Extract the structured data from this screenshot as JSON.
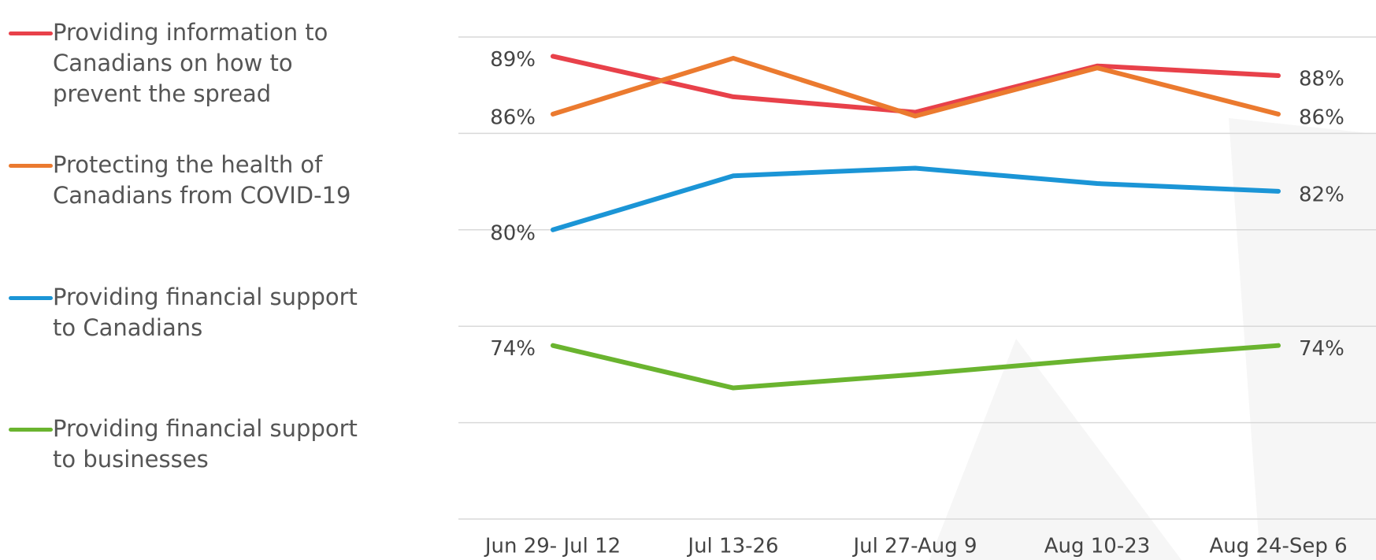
{
  "chart_data": {
    "type": "line",
    "categories": [
      "Jun 29- Jul 12",
      "Jul 13-26",
      "Jul 27-Aug 9",
      "Aug 10-23",
      "Aug 24-Sep 6"
    ],
    "series": [
      {
        "name": "Providing information to Canadians on how to prevent the spread",
        "color": "#e8414a",
        "values": [
          89,
          86.9,
          86.1,
          88.5,
          88
        ],
        "value_labels": [
          "89%",
          null,
          null,
          null,
          "88%"
        ]
      },
      {
        "name": "Protecting the health of Canadians from COVID-19",
        "color": "#eb7a2f",
        "values": [
          86,
          88.9,
          85.9,
          88.4,
          86
        ],
        "value_labels": [
          "86%",
          null,
          null,
          null,
          "86%"
        ]
      },
      {
        "name": "Providing financial support to Canadians",
        "color": "#1b95d6",
        "values": [
          80,
          82.8,
          83.2,
          82.4,
          82
        ],
        "value_labels": [
          "80%",
          null,
          null,
          null,
          "82%"
        ]
      },
      {
        "name": "Providing financial support to businesses",
        "color": "#6ab42f",
        "values": [
          74,
          71.8,
          72.5,
          73.3,
          74
        ],
        "value_labels": [
          "74%",
          null,
          null,
          null,
          "74%"
        ]
      }
    ],
    "ylim": [
      65,
      90
    ],
    "yticks": [
      65,
      70,
      75,
      80,
      85,
      90
    ],
    "grid": true,
    "legend": "left"
  }
}
